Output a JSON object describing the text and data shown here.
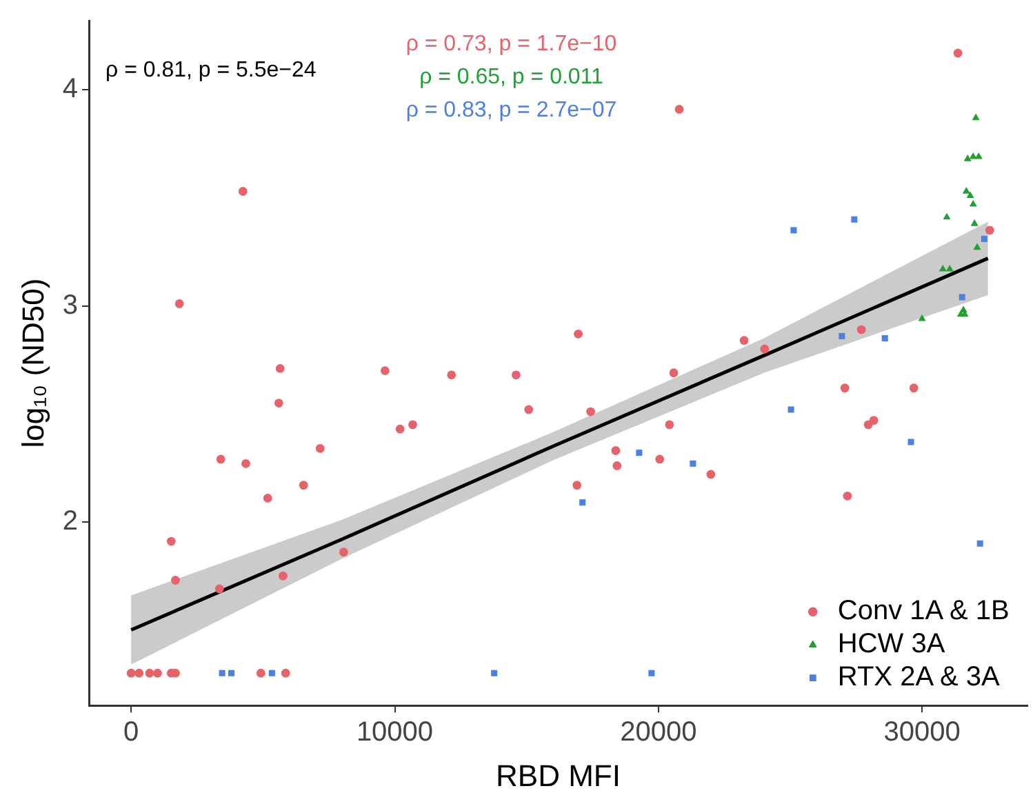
{
  "chart_data": {
    "type": "scatter",
    "xlabel": "RBD MFI",
    "ylabel": "log₁₀ (ND50)",
    "xlim": [
      -1600,
      34000
    ],
    "xticks": [
      0,
      10000,
      20000,
      30000
    ],
    "ylim": [
      1.15,
      4.32
    ],
    "yticks": [
      2,
      3,
      4
    ],
    "grid": false,
    "legend": "bottom right",
    "annotations": [
      "ρ = 0.81, p = 5.5e−24",
      "ρ = 0.73, p = 1.7e−10",
      "ρ = 0.65, p = 0.011",
      "ρ = 0.83, p = 2.7e−07"
    ],
    "series": [
      {
        "name": "Conv 1A & 1B",
        "color": "#e5636b",
        "marker": "circle",
        "x": [
          4240,
          1830,
          5650,
          9630,
          12150,
          14600,
          31360,
          20790,
          16960,
          23250,
          24030,
          27700,
          27070,
          29690,
          32570,
          20580,
          5600,
          3400,
          4350,
          7170,
          10200,
          10680,
          15080,
          6540,
          5180,
          1520,
          1680,
          3350,
          5760,
          8060,
          0,
          300,
          700,
          1000,
          1520,
          1680,
          4920,
          5860,
          17430,
          20420,
          18380,
          18430,
          20050,
          21990,
          16910,
          27960,
          28170,
          27170
        ],
        "values": [
          3.53,
          3.01,
          2.71,
          2.7,
          2.68,
          2.68,
          4.17,
          3.91,
          2.87,
          2.84,
          2.8,
          2.89,
          2.62,
          2.62,
          3.35,
          2.69,
          2.55,
          2.29,
          2.27,
          2.34,
          2.43,
          2.45,
          2.52,
          2.17,
          2.11,
          1.91,
          1.73,
          1.69,
          1.75,
          1.86,
          1.3,
          1.3,
          1.3,
          1.3,
          1.3,
          1.3,
          1.3,
          1.3,
          2.51,
          2.45,
          2.33,
          2.26,
          2.29,
          2.22,
          2.17,
          2.45,
          2.47,
          2.12
        ]
      },
      {
        "name": "HCW 3A",
        "color": "#22a033",
        "marker": "triangle",
        "x": [
          32040,
          31730,
          31940,
          32150,
          31680,
          31830,
          31940,
          30940,
          31990,
          32090,
          30790,
          31050,
          30000,
          31470,
          31620,
          31570
        ],
        "values": [
          3.87,
          3.68,
          3.69,
          3.69,
          3.53,
          3.51,
          3.47,
          3.41,
          3.38,
          3.27,
          3.17,
          3.17,
          2.94,
          2.96,
          2.96,
          2.98
        ]
      },
      {
        "name": "RTX 2A & 3A",
        "color": "#4f7fdf",
        "marker": "square",
        "x": [
          25030,
          29580,
          19270,
          21310,
          17120,
          32200,
          19740,
          25130,
          27430,
          32360,
          31520,
          26960,
          28590,
          3450,
          3800,
          5340,
          13770
        ],
        "values": [
          2.52,
          2.37,
          2.32,
          2.27,
          2.09,
          1.9,
          1.3,
          3.35,
          3.4,
          3.31,
          3.04,
          2.86,
          2.85,
          1.3,
          1.3,
          1.3,
          1.3
        ]
      },
      {
        "type": "line",
        "color": "#000000",
        "marker": "none",
        "x": [
          0,
          8000,
          16000,
          24000,
          32500
        ],
        "values": [
          1.5,
          1.92,
          2.35,
          2.77,
          3.22
        ],
        "lower": [
          1.34,
          1.83,
          2.285,
          2.69,
          3.05
        ],
        "upper": [
          1.66,
          2.01,
          2.415,
          2.85,
          3.39
        ]
      }
    ]
  }
}
